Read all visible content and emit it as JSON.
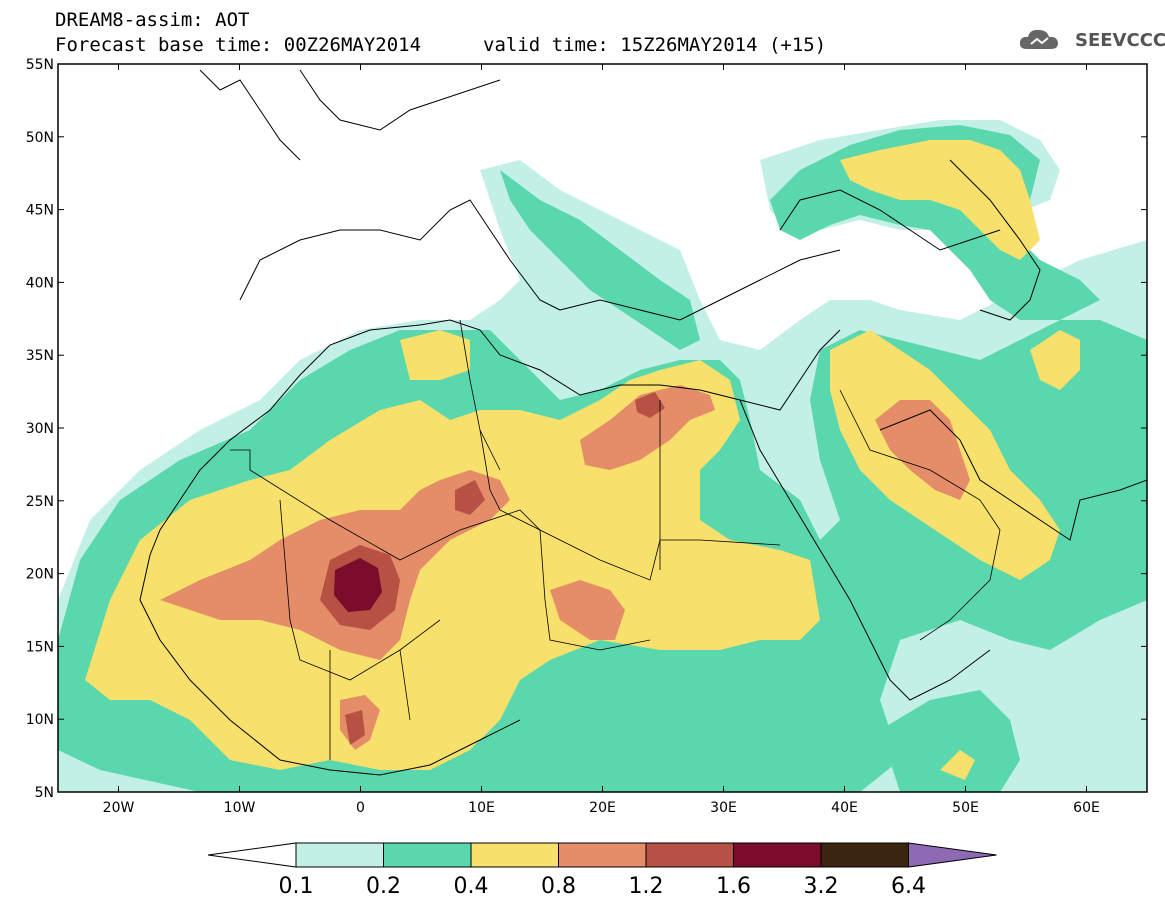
{
  "header": {
    "model_line": "DREAM8-assim: AOT",
    "base_time_line": "Forecast base time: 00Z26MAY2014",
    "valid_time_line": "valid time: 15Z26MAY2014 (+15)",
    "logo_text": "SEEVCCC"
  },
  "map": {
    "lon_labels": [
      "20W",
      "10W",
      "0",
      "10E",
      "20E",
      "30E",
      "40E",
      "50E",
      "60E"
    ],
    "lat_labels": [
      "55N",
      "50N",
      "45N",
      "40N",
      "35N",
      "30N",
      "25N",
      "20N",
      "15N",
      "10N",
      "5N"
    ]
  },
  "colorbar": {
    "tick_labels": [
      "0.1",
      "0.2",
      "0.4",
      "0.8",
      "1.2",
      "1.6",
      "3.2",
      "6.4"
    ],
    "colors": [
      "#ffffff",
      "#c2efe6",
      "#5ad7ad",
      "#f7e06b",
      "#e48d68",
      "#b65143",
      "#7b0c2c",
      "#3b2410",
      "#8f6ab4"
    ]
  }
}
